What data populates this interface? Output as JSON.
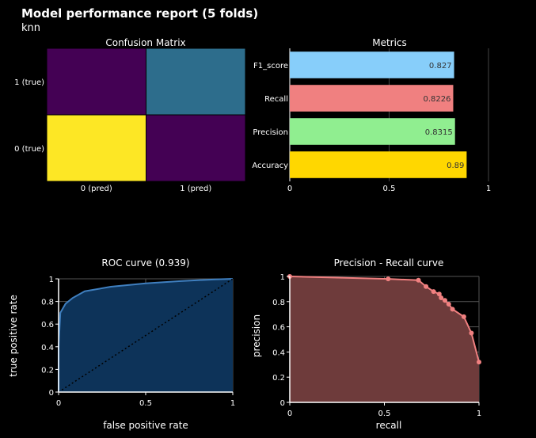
{
  "report": {
    "title": "Model performance report (5 folds)",
    "subtitle": "knn"
  },
  "chart_data": [
    {
      "type": "heatmap",
      "title": "Confusion Matrix",
      "x_categories": [
        "0 (pred)",
        "1 (pred)"
      ],
      "y_categories": [
        "0 (true)",
        "1 (true)"
      ],
      "cells": [
        {
          "x": "0 (pred)",
          "y": "1 (true)",
          "color": "#440154"
        },
        {
          "x": "1 (pred)",
          "y": "1 (true)",
          "color": "#2d6d8c"
        },
        {
          "x": "0 (pred)",
          "y": "0 (true)",
          "color": "#fde725"
        },
        {
          "x": "1 (pred)",
          "y": "0 (true)",
          "color": "#440154"
        }
      ]
    },
    {
      "type": "bar",
      "orientation": "horizontal",
      "title": "Metrics",
      "categories": [
        "F1_score",
        "Recall",
        "Precision",
        "Accuracy"
      ],
      "values": [
        0.827,
        0.8226,
        0.8315,
        0.89
      ],
      "labels": [
        "0.827",
        "0.8226",
        "0.8315",
        "0.89"
      ],
      "colors": [
        "#87cefa",
        "#f08080",
        "#90ee90",
        "#ffd700"
      ],
      "xlim": [
        0,
        1
      ],
      "xticks": [
        0,
        0.5,
        1
      ],
      "xtick_labels": [
        "0",
        "0.5",
        "1"
      ]
    },
    {
      "type": "area",
      "title": "ROC curve (0.939)",
      "xlabel": "false positive rate",
      "ylabel": "true positive rate",
      "xlim": [
        0,
        1
      ],
      "ylim": [
        0,
        1
      ],
      "xticks": [
        0,
        0.5,
        1
      ],
      "xtick_labels": [
        "0",
        "0.5",
        "1"
      ],
      "yticks": [
        0,
        0.2,
        0.4,
        0.6,
        0.8,
        1
      ],
      "ytick_labels": [
        "0",
        "0.2",
        "0.4",
        "0.6",
        "0.8",
        "1"
      ],
      "x": [
        0,
        0,
        0.01,
        0.04,
        0.08,
        0.15,
        0.3,
        0.5,
        0.7,
        0.9,
        1
      ],
      "y": [
        0,
        0.4,
        0.7,
        0.78,
        0.83,
        0.89,
        0.93,
        0.96,
        0.98,
        0.995,
        1
      ],
      "fill_color": "#0d3359",
      "line_color": "#3f7fbf",
      "baseline": {
        "x": [
          0,
          1
        ],
        "y": [
          0,
          1
        ],
        "style": "dotted"
      }
    },
    {
      "type": "area",
      "title": "Precision - Recall curve",
      "xlabel": "recall",
      "ylabel": "precision",
      "xlim": [
        0,
        1
      ],
      "ylim": [
        0,
        1
      ],
      "xticks": [
        0,
        0.5,
        1
      ],
      "xtick_labels": [
        "0",
        "0.5",
        "1"
      ],
      "yticks": [
        0,
        0.2,
        0.4,
        0.6,
        0.8,
        1
      ],
      "ytick_labels": [
        "0",
        "0.2",
        "0.4",
        "0.6",
        "0.8",
        "1"
      ],
      "x": [
        0,
        0.52,
        0.68,
        0.72,
        0.76,
        0.79,
        0.8,
        0.82,
        0.84,
        0.86,
        0.92,
        0.96,
        1.0
      ],
      "y": [
        1,
        0.98,
        0.97,
        0.92,
        0.88,
        0.86,
        0.83,
        0.81,
        0.78,
        0.74,
        0.68,
        0.55,
        0.32
      ],
      "fill_color": "#6e3b3b",
      "line_color": "#f08080",
      "markers": true
    }
  ]
}
